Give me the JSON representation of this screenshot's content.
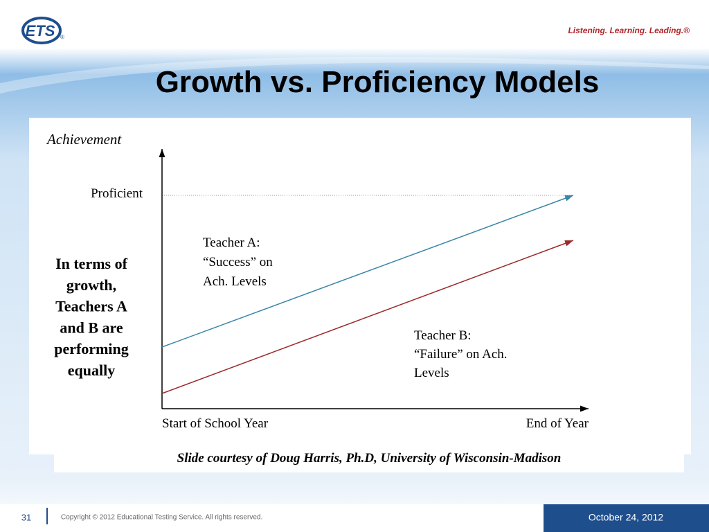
{
  "header": {
    "logo": "ETS",
    "logo_mark": "®",
    "tagline": "Listening. Learning. Leading.®",
    "title": "Growth vs. Proficiency Models"
  },
  "diagram": {
    "y_axis_label": "Achievement",
    "proficient_label": "Proficient",
    "teacher_a": [
      "Teacher A:",
      "“Success” on",
      "Ach. Levels"
    ],
    "teacher_b": [
      "Teacher B:",
      "“Failure” on Ach.",
      "Levels"
    ],
    "x_start": "Start of School Year",
    "x_end": "End of Year",
    "side_note": [
      "In terms of",
      "growth,",
      "Teachers A",
      "and B are",
      "performing",
      "equally"
    ],
    "credit": "Slide courtesy of Doug Harris, Ph.D, University of Wisconsin-Madison"
  },
  "footer": {
    "page_number": "31",
    "copyright": "Copyright © 2012 Educational Testing Service. All rights reserved.",
    "date": "October 24, 2012"
  }
}
